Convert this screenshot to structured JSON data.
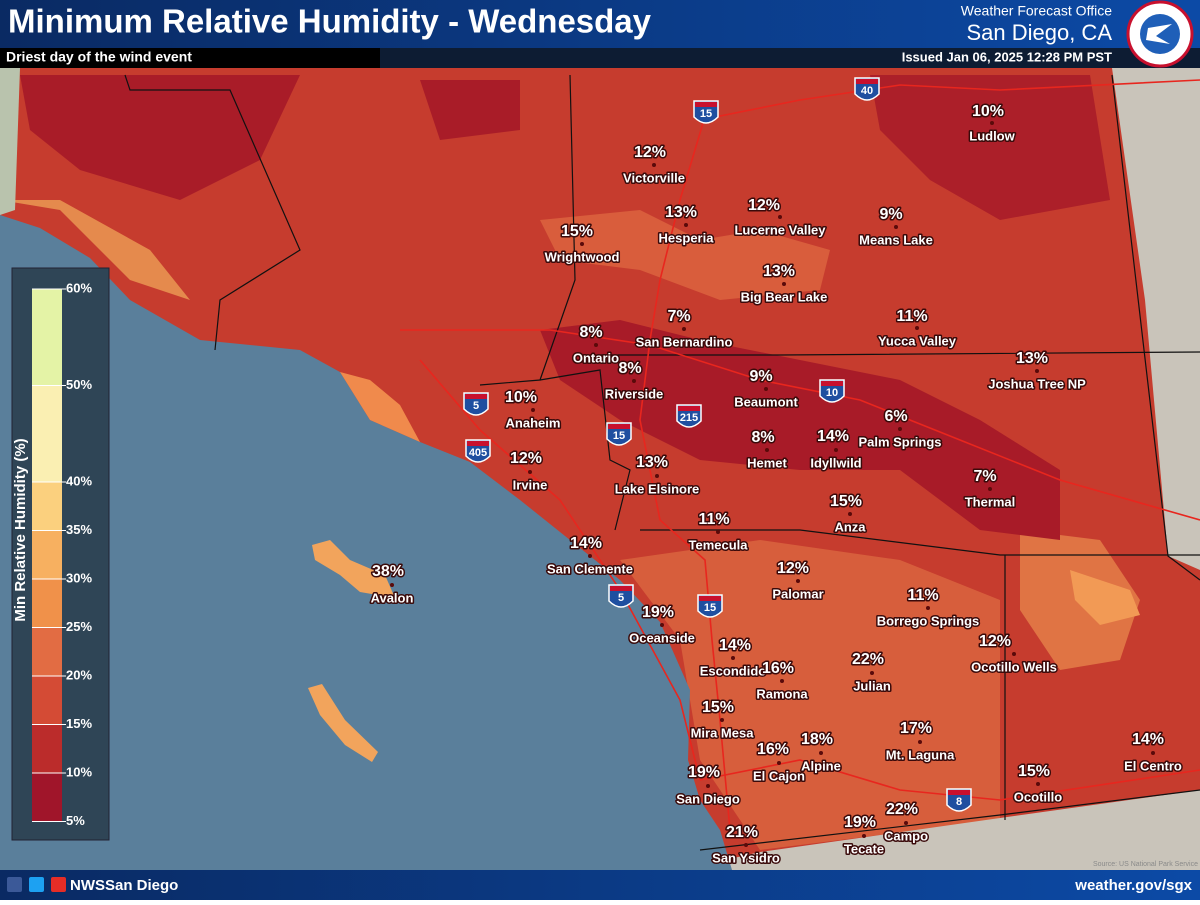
{
  "header": {
    "title": "Minimum Relative Humidity - Wednesday",
    "subtitle": "Driest day of the wind event",
    "office": "Weather Forecast Office",
    "location": "San Diego, CA",
    "issued": "Issued Jan 06, 2025 12:28 PM PST"
  },
  "legend": {
    "title": "Min Relative Humidity (%)",
    "ticks": [
      {
        "value": 60,
        "label": "60%"
      },
      {
        "value": 50,
        "label": "50%"
      },
      {
        "value": 40,
        "label": "40%"
      },
      {
        "value": 35,
        "label": "35%"
      },
      {
        "value": 30,
        "label": "30%"
      },
      {
        "value": 25,
        "label": "25%"
      },
      {
        "value": 20,
        "label": "20%"
      },
      {
        "value": 15,
        "label": "15%"
      },
      {
        "value": 10,
        "label": "10%"
      },
      {
        "value": 5,
        "label": "5%"
      }
    ],
    "colors": [
      "#e4f3a6",
      "#faefb2",
      "#fbd07e",
      "#f7b060",
      "#f0914a",
      "#e26c43",
      "#d44b35",
      "#bb2c2b",
      "#a0152a"
    ]
  },
  "places": [
    {
      "name": "Ludlow",
      "rh": "10%"
    },
    {
      "name": "Victorville",
      "rh": "12%"
    },
    {
      "name": "Hesperia",
      "rh": "13%"
    },
    {
      "name": "Lucerne Valley",
      "rh": "12%"
    },
    {
      "name": "Means Lake",
      "rh": "9%"
    },
    {
      "name": "Wrightwood",
      "rh": "15%"
    },
    {
      "name": "Big Bear Lake",
      "rh": "13%"
    },
    {
      "name": "Ontario",
      "rh": "8%"
    },
    {
      "name": "San Bernardino",
      "rh": "7%"
    },
    {
      "name": "Yucca Valley",
      "rh": "11%"
    },
    {
      "name": "Joshua Tree NP",
      "rh": "13%"
    },
    {
      "name": "Riverside",
      "rh": "8%"
    },
    {
      "name": "Beaumont",
      "rh": "9%"
    },
    {
      "name": "Anaheim",
      "rh": "10%"
    },
    {
      "name": "Palm Springs",
      "rh": "6%"
    },
    {
      "name": "Hemet",
      "rh": "8%"
    },
    {
      "name": "Idyllwild",
      "rh": "14%"
    },
    {
      "name": "Irvine",
      "rh": "12%"
    },
    {
      "name": "Lake Elsinore",
      "rh": "13%"
    },
    {
      "name": "Thermal",
      "rh": "7%"
    },
    {
      "name": "Anza",
      "rh": "15%"
    },
    {
      "name": "Temecula",
      "rh": "11%"
    },
    {
      "name": "San Clemente",
      "rh": "14%"
    },
    {
      "name": "Avalon",
      "rh": "38%"
    },
    {
      "name": "Palomar",
      "rh": "12%"
    },
    {
      "name": "Borrego Springs",
      "rh": "11%"
    },
    {
      "name": "Oceanside",
      "rh": "19%"
    },
    {
      "name": "Escondido",
      "rh": "14%"
    },
    {
      "name": "Ocotillo Wells",
      "rh": "12%"
    },
    {
      "name": "Ramona",
      "rh": "16%"
    },
    {
      "name": "Julian",
      "rh": "22%"
    },
    {
      "name": "Mira Mesa",
      "rh": "15%"
    },
    {
      "name": "Mt. Laguna",
      "rh": "17%"
    },
    {
      "name": "Alpine",
      "rh": "18%"
    },
    {
      "name": "El Cajon",
      "rh": "16%"
    },
    {
      "name": "El Centro",
      "rh": "14%"
    },
    {
      "name": "San Diego",
      "rh": "19%"
    },
    {
      "name": "Ocotillo",
      "rh": "15%"
    },
    {
      "name": "Campo",
      "rh": "22%"
    },
    {
      "name": "Tecate",
      "rh": "19%"
    },
    {
      "name": "San Ysidro",
      "rh": "21%"
    }
  ],
  "highways": [
    "15",
    "40",
    "5",
    "405",
    "15",
    "215",
    "10",
    "5",
    "15",
    "8"
  ],
  "footer": {
    "social": "NWSSan Diego",
    "url": "weather.gov/sgx",
    "source": "Source: US National Park Service"
  }
}
